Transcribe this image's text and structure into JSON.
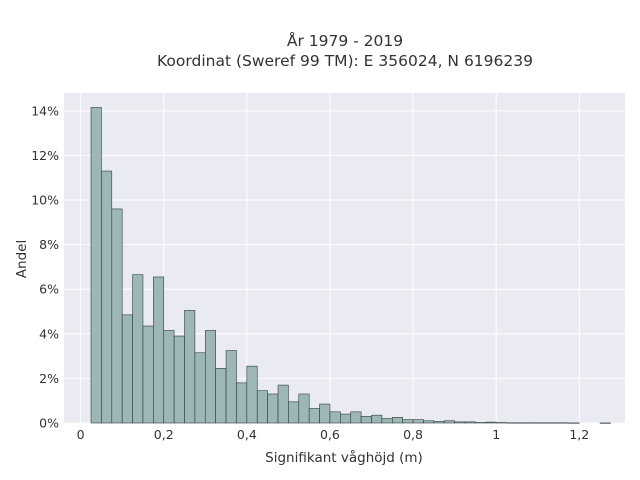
{
  "chart_data": {
    "type": "bar",
    "title_line1": "År 1979 - 2019",
    "title_line2": "Koordinat (Sweref 99 TM): E 356024, N 6196239",
    "xlabel": "Signifikant våghöjd (m)",
    "ylabel": "Andel",
    "xlim": [
      -0.04,
      1.31
    ],
    "ylim": [
      0,
      14.8
    ],
    "bin_width": 0.025,
    "bin_start": 0.025,
    "values": [
      14.15,
      11.3,
      9.6,
      4.85,
      6.65,
      4.35,
      6.55,
      4.15,
      3.9,
      5.05,
      3.15,
      4.15,
      2.45,
      3.25,
      1.8,
      2.55,
      1.45,
      1.3,
      1.7,
      0.95,
      1.3,
      0.65,
      0.85,
      0.5,
      0.4,
      0.5,
      0.3,
      0.35,
      0.2,
      0.25,
      0.15,
      0.15,
      0.1,
      0.07,
      0.1,
      0.05,
      0.05,
      0.02,
      0.04,
      0.02,
      0.01,
      0.01,
      0.01,
      0.01,
      0.01,
      0.01,
      0.005,
      0,
      0,
      0.003
    ],
    "x_ticks": [
      {
        "value": 0,
        "label": "0"
      },
      {
        "value": 0.2,
        "label": "0,2"
      },
      {
        "value": 0.4,
        "label": "0,4"
      },
      {
        "value": 0.6,
        "label": "0,6"
      },
      {
        "value": 0.8,
        "label": "0,8"
      },
      {
        "value": 1.0,
        "label": "1"
      },
      {
        "value": 1.2,
        "label": "1,2"
      }
    ],
    "y_ticks": [
      {
        "value": 0,
        "label": "0%"
      },
      {
        "value": 2,
        "label": "2%"
      },
      {
        "value": 4,
        "label": "4%"
      },
      {
        "value": 6,
        "label": "6%"
      },
      {
        "value": 8,
        "label": "8%"
      },
      {
        "value": 10,
        "label": "10%"
      },
      {
        "value": 12,
        "label": "12%"
      },
      {
        "value": 14,
        "label": "14%"
      }
    ],
    "grid": true,
    "bar_color": "#9db6b6",
    "bar_edge_color": "#2f3d3d",
    "plot_bg": "#eaeaf2",
    "grid_color": "#ffffff"
  }
}
